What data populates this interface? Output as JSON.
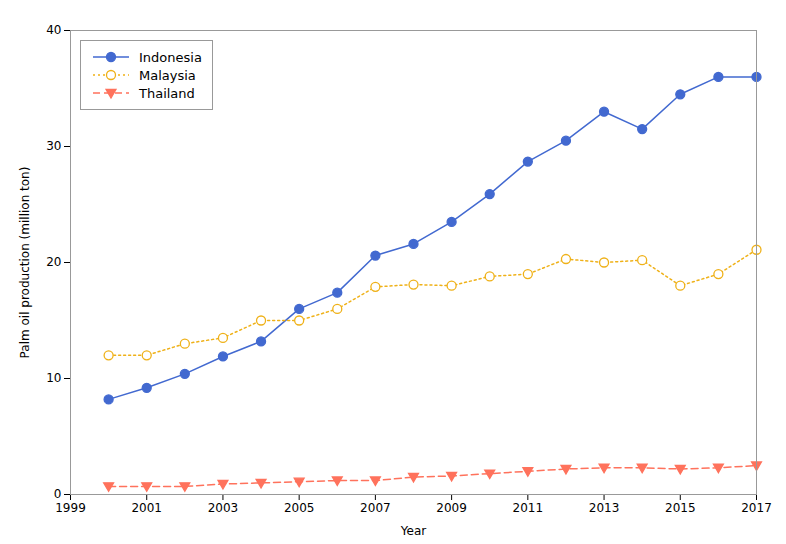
{
  "chart_data": {
    "type": "line",
    "x": [
      2000,
      2001,
      2002,
      2003,
      2004,
      2005,
      2006,
      2007,
      2008,
      2009,
      2010,
      2011,
      2012,
      2013,
      2014,
      2015,
      2016,
      2017
    ],
    "series": [
      {
        "name": "Indonesia",
        "marker": "circle",
        "line_style": "solid",
        "values": [
          8.2,
          9.2,
          10.4,
          11.9,
          13.2,
          16.0,
          17.4,
          20.6,
          21.6,
          23.5,
          25.9,
          28.7,
          30.5,
          33.0,
          31.5,
          34.5,
          36.0,
          36.0
        ]
      },
      {
        "name": "Malaysia",
        "marker": "circle_open",
        "line_style": "dotted",
        "values": [
          12.0,
          12.0,
          13.0,
          13.5,
          15.0,
          15.0,
          16.0,
          17.9,
          18.1,
          18.0,
          18.8,
          19.0,
          20.3,
          20.0,
          20.2,
          18.0,
          19.0,
          21.1
        ]
      },
      {
        "name": "Thailand",
        "marker": "triangle_down",
        "line_style": "dashed",
        "values": [
          0.7,
          0.7,
          0.7,
          0.9,
          1.0,
          1.1,
          1.2,
          1.2,
          1.5,
          1.6,
          1.8,
          2.0,
          2.2,
          2.3,
          2.3,
          2.2,
          2.3,
          2.5
        ]
      }
    ],
    "xlabel": "Year",
    "ylabel": "Palm oil production (million ton)",
    "xlim": [
      1999,
      2017
    ],
    "xticks": [
      1999,
      2001,
      2003,
      2005,
      2007,
      2009,
      2011,
      2013,
      2015,
      2017
    ],
    "ylim": [
      0,
      40
    ],
    "yticks": [
      0,
      10,
      20,
      30,
      40
    ],
    "legend": "upper left",
    "grid": false
  }
}
